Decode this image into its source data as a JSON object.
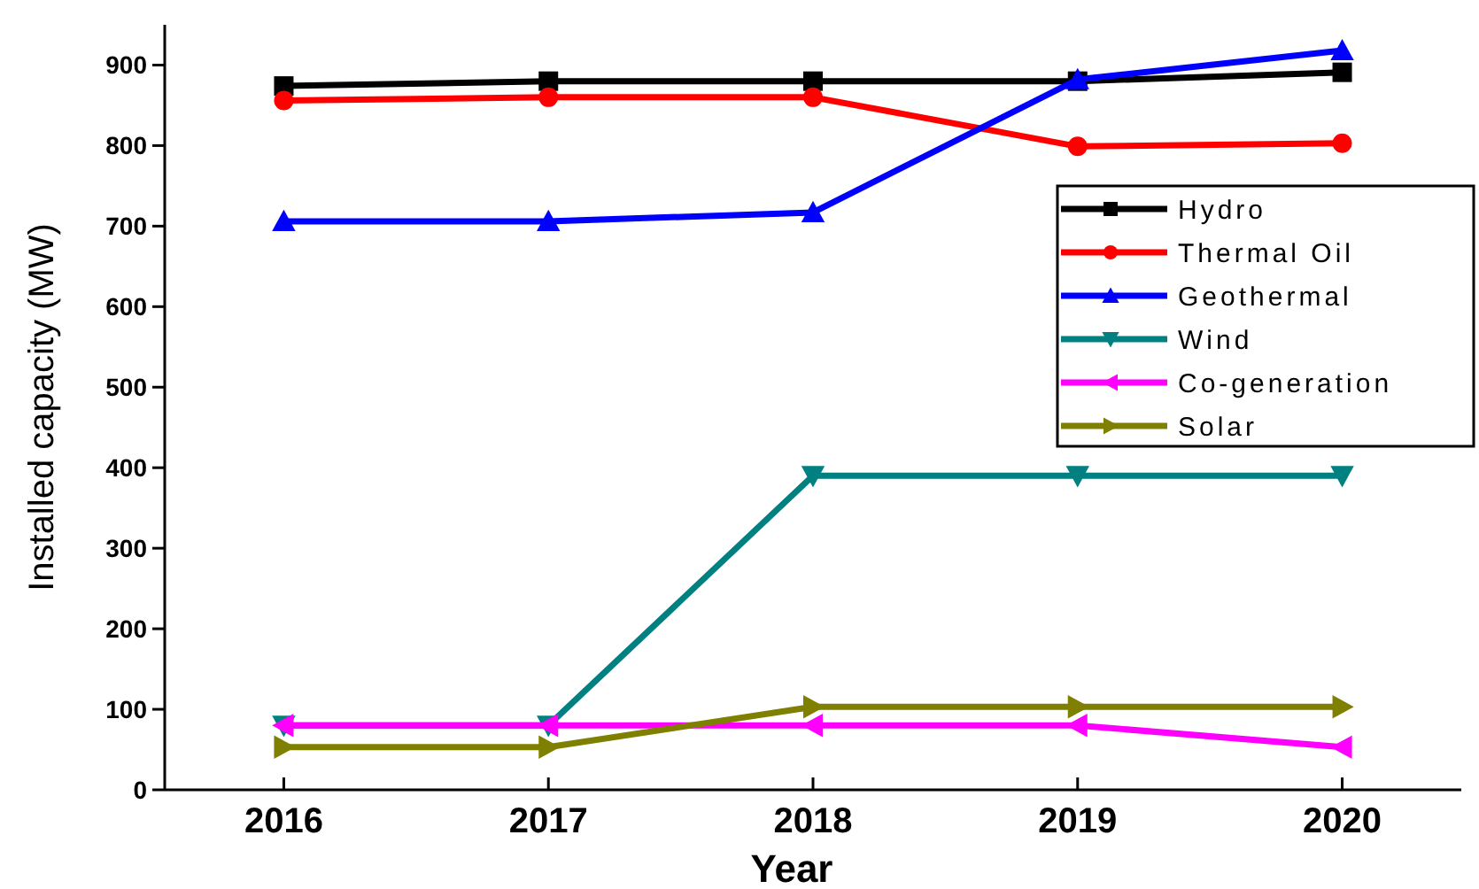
{
  "chart_data": {
    "type": "line",
    "xlabel": "Year",
    "ylabel": "Installed capacity (MW)",
    "x": [
      2016,
      2017,
      2018,
      2019,
      2020
    ],
    "xlim": [
      2015.55,
      2020.45
    ],
    "xticks": [
      2016,
      2017,
      2018,
      2019,
      2020
    ],
    "ylim": [
      0,
      950
    ],
    "yticks": [
      0,
      100,
      200,
      300,
      400,
      500,
      600,
      700,
      800,
      900
    ],
    "grid": false,
    "legend": "right",
    "series": [
      {
        "name": "Hydro",
        "color": "#000000",
        "marker": "square",
        "values": [
          874,
          880,
          880,
          880,
          891
        ]
      },
      {
        "name": "Thermal Oil",
        "color": "#ff0000",
        "marker": "circle",
        "values": [
          856,
          860,
          860,
          799,
          803
        ]
      },
      {
        "name": "Geothermal",
        "color": "#0000ff",
        "marker": "triangle",
        "values": [
          706,
          706,
          717,
          882,
          918
        ]
      },
      {
        "name": "Wind",
        "color": "#008080",
        "marker": "triangle-down",
        "values": [
          80,
          80,
          390,
          390,
          390
        ]
      },
      {
        "name": "Co-generation",
        "color": "#ff00ff",
        "marker": "triangle-left",
        "values": [
          80,
          80,
          80,
          80,
          53
        ]
      },
      {
        "name": "Solar",
        "color": "#808000",
        "marker": "triangle-right",
        "values": [
          53,
          53,
          103,
          103,
          103
        ]
      }
    ]
  }
}
